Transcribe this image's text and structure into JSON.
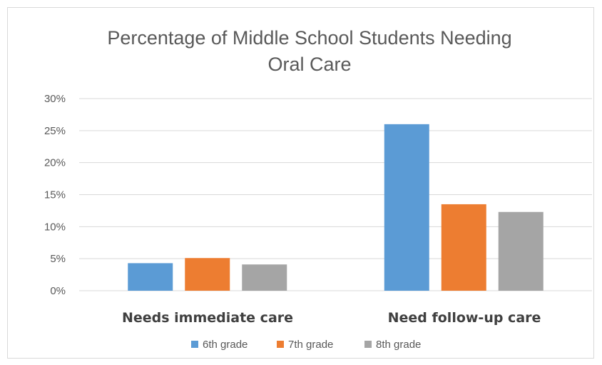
{
  "chart_data": {
    "type": "bar",
    "title_lines": [
      "Percentage of Middle School Students Needing",
      "Oral Care"
    ],
    "categories": [
      "Needs immediate care",
      "Need follow-up care"
    ],
    "series": [
      {
        "name": "6th grade",
        "color": "#5b9bd5",
        "values": [
          4.3,
          26.0
        ]
      },
      {
        "name": "7th grade",
        "color": "#ed7d31",
        "values": [
          5.1,
          13.5
        ]
      },
      {
        "name": "8th grade",
        "color": "#a5a5a5",
        "values": [
          4.1,
          12.3
        ]
      }
    ],
    "ylim": [
      0,
      30
    ],
    "yticks": [
      0,
      5,
      10,
      15,
      20,
      25,
      30
    ],
    "ytick_labels": [
      "0%",
      "5%",
      "10%",
      "15%",
      "20%",
      "25%",
      "30%"
    ],
    "grid": true,
    "legend_position": "bottom"
  }
}
